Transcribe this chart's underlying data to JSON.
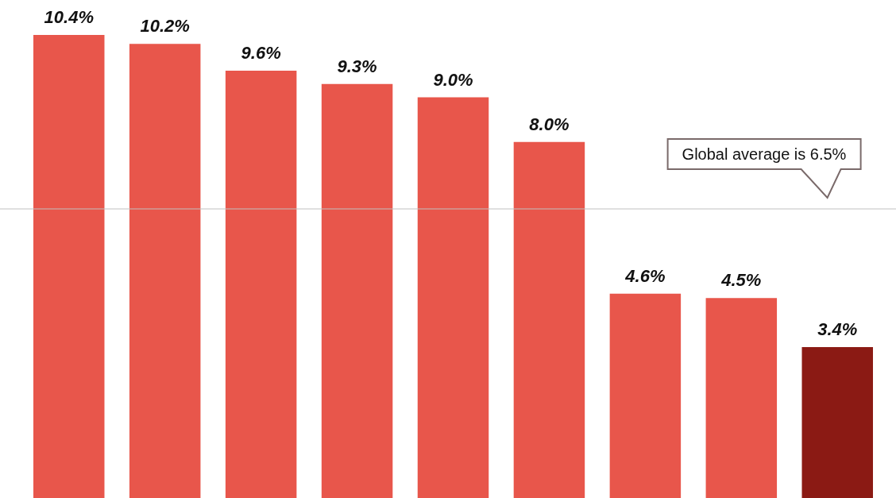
{
  "chart_data": {
    "type": "bar",
    "categories": [
      null,
      null,
      null,
      null,
      null,
      null,
      null,
      null,
      null
    ],
    "values": [
      10.4,
      10.2,
      9.6,
      9.3,
      9.0,
      8.0,
      4.6,
      4.5,
      3.4
    ],
    "colors": [
      "#e8564b",
      "#e8564b",
      "#e8564b",
      "#e8564b",
      "#e8564b",
      "#e8564b",
      "#e8564b",
      "#e8564b",
      "#8b1a14"
    ],
    "value_labels": [
      "10.4%",
      "10.2%",
      "9.6%",
      "9.3%",
      "9.0%",
      "8.0%",
      "4.6%",
      "4.5%",
      "3.4%"
    ],
    "ref_lines": [
      {
        "axis": "y",
        "value": 6.5,
        "label": "Global average is 6.5%",
        "color": "#c0c0c0"
      }
    ]
  }
}
